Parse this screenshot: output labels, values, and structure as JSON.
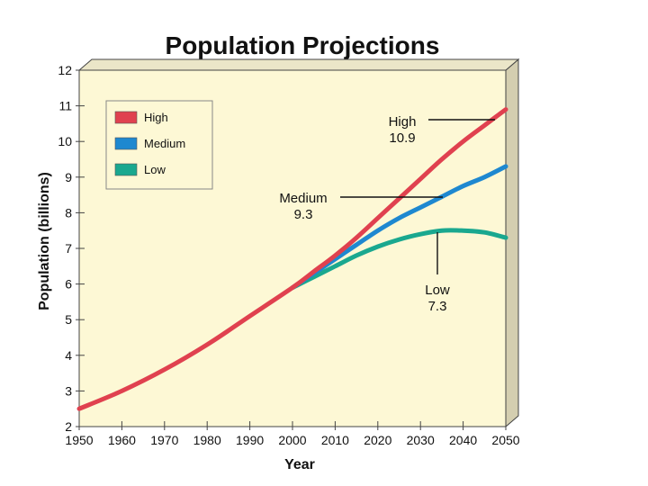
{
  "chart_data": {
    "type": "line",
    "title": "Population Projections",
    "xlabel": "Year",
    "ylabel": "Population (billions)",
    "xlim": [
      1950,
      2050
    ],
    "ylim": [
      2,
      12
    ],
    "x_ticks": [
      1950,
      1960,
      1970,
      1980,
      1990,
      2000,
      2010,
      2020,
      2030,
      2040,
      2050
    ],
    "y_ticks": [
      2,
      3,
      4,
      5,
      6,
      7,
      8,
      9,
      10,
      11,
      12
    ],
    "grid": false,
    "legend_position": "top-left",
    "series": [
      {
        "name": "High",
        "color": "#e0414f",
        "x": [
          1950,
          1960,
          1970,
          1980,
          1990,
          2000,
          2005,
          2010,
          2015,
          2020,
          2025,
          2030,
          2035,
          2040,
          2045,
          2050
        ],
        "y": [
          2.5,
          3.0,
          3.6,
          4.3,
          5.1,
          5.9,
          6.35,
          6.8,
          7.3,
          7.85,
          8.4,
          8.95,
          9.5,
          10.0,
          10.45,
          10.9
        ]
      },
      {
        "name": "Medium",
        "color": "#1e88d0",
        "x": [
          2000,
          2005,
          2010,
          2015,
          2020,
          2025,
          2030,
          2035,
          2040,
          2045,
          2050
        ],
        "y": [
          5.9,
          6.3,
          6.7,
          7.1,
          7.5,
          7.85,
          8.15,
          8.45,
          8.75,
          9.0,
          9.3
        ]
      },
      {
        "name": "Low",
        "color": "#1aa88f",
        "x": [
          2000,
          2005,
          2010,
          2015,
          2020,
          2025,
          2030,
          2035,
          2040,
          2045,
          2050
        ],
        "y": [
          5.9,
          6.2,
          6.5,
          6.8,
          7.05,
          7.25,
          7.4,
          7.5,
          7.5,
          7.45,
          7.3
        ]
      }
    ],
    "annotations": [
      {
        "series": "High",
        "label": "High",
        "value": "10.9"
      },
      {
        "series": "Medium",
        "label": "Medium",
        "value": "9.3"
      },
      {
        "series": "Low",
        "label": "Low",
        "value": "7.3"
      }
    ]
  },
  "colors": {
    "plot_background": "#fdf8d5",
    "depth_side": "#d4ceb0",
    "axis": "#444444"
  }
}
